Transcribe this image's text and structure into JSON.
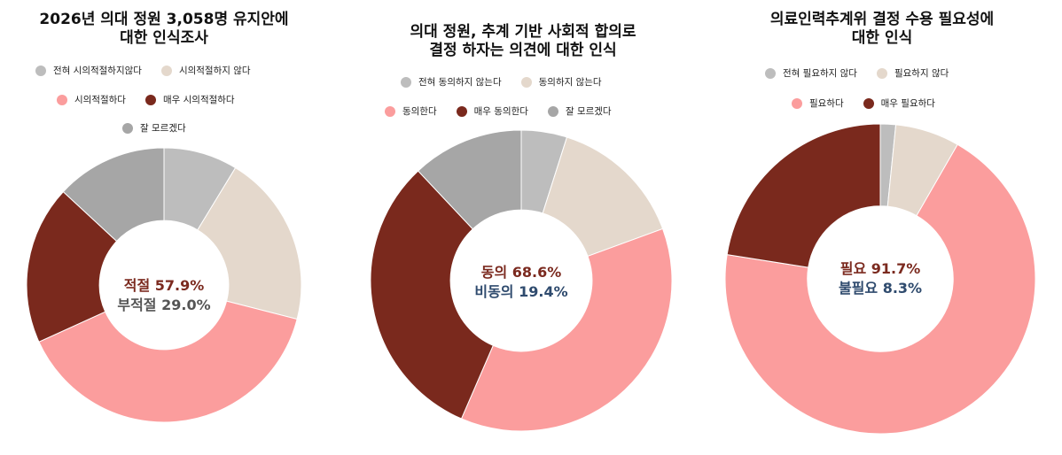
{
  "colors": {
    "strongly_negative": "#bdbdbd",
    "negative": "#e4d8cc",
    "positive": "#fb9d9d",
    "strongly_positive": "#7a291d",
    "unknown": "#a6a6a6"
  },
  "chart_data": [
    {
      "type": "pie",
      "title_line1": "2026년 의대 정원 3,058명 유지안에",
      "title_line2": "대한 인식조사",
      "categories": [
        "전혀 시의적절하지않다",
        "시의적절하지 않다",
        "시의적절하다",
        "매우 시의적절하다",
        "잘 모르겠다"
      ],
      "values": [
        8.7,
        20.3,
        39.2,
        18.7,
        13.1
      ],
      "center_line1_label": "적절",
      "center_line1_value": "57.9%",
      "center_line2_label": "부적절",
      "center_line2_value": "29.0%"
    },
    {
      "type": "pie",
      "title_line1": "의대 정원, 추계 기반 사회적 합의로",
      "title_line2": "결정 하자는 의견에 대한 인식",
      "categories": [
        "전혀 동의하지 않는다",
        "동의하지 않는다",
        "동의한다",
        "매우 동의한다",
        "잘 모르겠다"
      ],
      "values": [
        4.9,
        14.5,
        37.1,
        31.5,
        12.0
      ],
      "center_line1_label": "동의",
      "center_line1_value": "68.6%",
      "center_line2_label": "비동의",
      "center_line2_value": "19.4%"
    },
    {
      "type": "pie",
      "title_line1": "의료인력추계위 결정 수용 필요성에",
      "title_line2": "대한 인식",
      "categories": [
        "전혀 필요하지 않다",
        "필요하지 않다",
        "필요하다",
        "매우 필요하다"
      ],
      "values": [
        1.6,
        6.7,
        69.2,
        22.5
      ],
      "center_line1_label": "필요",
      "center_line1_value": "91.7%",
      "center_line2_label": "불필요",
      "center_line2_value": "8.3%"
    }
  ]
}
